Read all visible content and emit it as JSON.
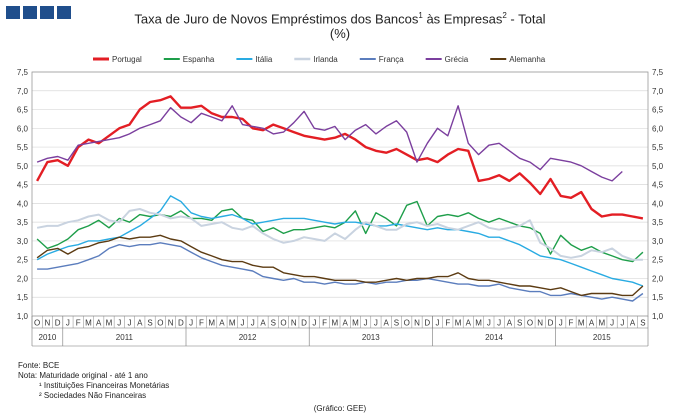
{
  "header": {
    "title_line1_a": "Taxa de Juro de Novos Empréstimos dos Bancos",
    "title_sup1": "1",
    "title_line1_b": " às Empresas",
    "title_sup2": "2",
    "title_line1_c": " - Total",
    "title_line2": "(%)"
  },
  "notes": {
    "source": "Fonte: BCE",
    "note": "Nota: Maturidade original - até 1 ano",
    "fn1": "¹ Instituições Financeiras Monetárias",
    "fn2": "² Sociedades Não Financeiras",
    "credit": "(Gráfico: GEE)"
  },
  "chart_data": {
    "type": "line",
    "title": "Taxa de Juro de Novos Empréstimos dos Bancos¹ às Empresas² - Total",
    "subtitle": "(%)",
    "legend_position": "top",
    "grid": true,
    "ylim": [
      1.0,
      7.5
    ],
    "yticks": [
      "1,0",
      "1,5",
      "2,0",
      "2,5",
      "3,0",
      "3,5",
      "4,0",
      "4,5",
      "5,0",
      "5,5",
      "6,0",
      "6,5",
      "7,0",
      "7,5"
    ],
    "x_months": [
      "O",
      "N",
      "D",
      "J",
      "F",
      "M",
      "A",
      "M",
      "J",
      "J",
      "A",
      "S",
      "O",
      "N",
      "D",
      "J",
      "F",
      "M",
      "A",
      "M",
      "J",
      "J",
      "A",
      "S",
      "O",
      "N",
      "D",
      "J",
      "F",
      "M",
      "A",
      "M",
      "J",
      "J",
      "A",
      "S",
      "O",
      "N",
      "D",
      "J",
      "F",
      "M",
      "A",
      "M",
      "J",
      "J",
      "A",
      "S",
      "O",
      "N",
      "D",
      "J",
      "F",
      "M",
      "A",
      "M",
      "J",
      "J",
      "A",
      "S"
    ],
    "years": [
      {
        "label": "2010",
        "start": 0,
        "end": 3
      },
      {
        "label": "2011",
        "start": 3,
        "end": 15
      },
      {
        "label": "2012",
        "start": 15,
        "end": 27
      },
      {
        "label": "2013",
        "start": 27,
        "end": 39
      },
      {
        "label": "2014",
        "start": 39,
        "end": 51
      },
      {
        "label": "2015",
        "start": 51,
        "end": 60
      }
    ],
    "series": [
      {
        "name": "Portugal",
        "color": "#e31e24",
        "width": 2.4,
        "values": [
          4.6,
          5.1,
          5.15,
          5.0,
          5.5,
          5.7,
          5.6,
          5.8,
          6.0,
          6.1,
          6.5,
          6.7,
          6.75,
          6.85,
          6.55,
          6.55,
          6.6,
          6.4,
          6.3,
          6.3,
          6.25,
          6.0,
          5.95,
          6.1,
          6.0,
          5.9,
          5.8,
          5.75,
          5.7,
          5.75,
          5.85,
          5.7,
          5.5,
          5.4,
          5.35,
          5.45,
          5.3,
          5.15,
          5.2,
          5.1,
          5.3,
          5.45,
          5.4,
          4.6,
          4.65,
          4.75,
          4.6,
          4.8,
          4.55,
          4.25,
          4.65,
          4.2,
          4.15,
          4.3,
          3.85,
          3.65,
          3.7,
          3.7,
          3.65,
          3.6
        ]
      },
      {
        "name": "Espanha",
        "color": "#1e9e4a",
        "width": 1.4,
        "values": [
          3.05,
          2.8,
          2.9,
          3.05,
          3.3,
          3.4,
          3.55,
          3.35,
          3.6,
          3.5,
          3.7,
          3.65,
          3.7,
          3.65,
          3.8,
          3.6,
          3.6,
          3.55,
          3.8,
          3.85,
          3.6,
          3.55,
          3.25,
          3.35,
          3.2,
          3.3,
          3.3,
          3.35,
          3.4,
          3.35,
          3.5,
          3.8,
          3.2,
          3.75,
          3.6,
          3.4,
          3.95,
          4.05,
          3.4,
          3.65,
          3.7,
          3.65,
          3.75,
          3.6,
          3.5,
          3.6,
          3.5,
          3.4,
          3.35,
          3.2,
          2.65,
          3.15,
          2.9,
          2.75,
          2.85,
          2.7,
          2.6,
          2.5,
          2.45,
          2.7
        ]
      },
      {
        "name": "Itália",
        "color": "#29abe2",
        "width": 1.4,
        "values": [
          2.5,
          2.65,
          2.75,
          2.85,
          2.9,
          3.0,
          3.0,
          3.05,
          3.1,
          3.25,
          3.4,
          3.6,
          3.8,
          4.2,
          4.05,
          3.75,
          3.65,
          3.6,
          3.65,
          3.7,
          3.6,
          3.45,
          3.5,
          3.55,
          3.6,
          3.6,
          3.6,
          3.55,
          3.5,
          3.45,
          3.5,
          3.5,
          3.45,
          3.4,
          3.4,
          3.45,
          3.4,
          3.35,
          3.3,
          3.35,
          3.3,
          3.3,
          3.25,
          3.2,
          3.1,
          3.1,
          3.0,
          2.9,
          2.75,
          2.6,
          2.55,
          2.5,
          2.4,
          2.3,
          2.2,
          2.1,
          2.0,
          1.95,
          1.9,
          1.8
        ]
      },
      {
        "name": "Irlanda",
        "color": "#c9d3e0",
        "width": 2.0,
        "values": [
          3.35,
          3.4,
          3.4,
          3.5,
          3.55,
          3.65,
          3.7,
          3.55,
          3.5,
          3.8,
          3.85,
          3.75,
          3.7,
          3.6,
          3.65,
          3.6,
          3.4,
          3.45,
          3.5,
          3.35,
          3.3,
          3.4,
          3.2,
          3.05,
          2.95,
          3.0,
          3.1,
          3.05,
          3.0,
          3.2,
          3.05,
          3.3,
          3.5,
          3.4,
          3.3,
          3.3,
          3.45,
          3.5,
          3.4,
          3.45,
          3.35,
          3.3,
          3.4,
          3.5,
          3.35,
          3.3,
          3.35,
          3.4,
          3.55,
          2.95,
          2.8,
          2.6,
          2.55,
          2.6,
          2.75,
          2.7,
          2.8,
          2.6,
          2.5,
          2.5
        ]
      },
      {
        "name": "França",
        "color": "#5b7dbd",
        "width": 1.4,
        "values": [
          2.25,
          2.25,
          2.3,
          2.35,
          2.4,
          2.5,
          2.6,
          2.8,
          2.9,
          2.85,
          2.9,
          2.9,
          2.95,
          2.9,
          2.85,
          2.7,
          2.55,
          2.45,
          2.35,
          2.3,
          2.25,
          2.2,
          2.05,
          2.0,
          1.95,
          2.0,
          1.9,
          1.9,
          1.85,
          1.9,
          1.85,
          1.85,
          1.9,
          1.85,
          1.9,
          1.9,
          1.95,
          1.95,
          2.0,
          1.95,
          1.9,
          1.85,
          1.85,
          1.8,
          1.8,
          1.85,
          1.75,
          1.7,
          1.65,
          1.65,
          1.55,
          1.55,
          1.6,
          1.55,
          1.5,
          1.45,
          1.5,
          1.45,
          1.4,
          1.6
        ]
      },
      {
        "name": "Grécia",
        "color": "#7b3f9e",
        "width": 1.4,
        "values": [
          5.1,
          5.2,
          5.25,
          5.15,
          5.55,
          5.6,
          5.65,
          5.7,
          5.75,
          5.85,
          6.0,
          6.1,
          6.2,
          6.55,
          6.3,
          6.15,
          6.4,
          6.3,
          6.2,
          6.6,
          6.1,
          6.05,
          6.0,
          5.85,
          5.9,
          6.15,
          6.45,
          6.0,
          5.95,
          6.05,
          5.7,
          5.95,
          6.1,
          5.85,
          6.05,
          6.2,
          5.9,
          5.1,
          5.6,
          6.0,
          5.8,
          6.6,
          5.6,
          5.3,
          5.55,
          5.6,
          5.4,
          5.2,
          5.1,
          4.9,
          5.2,
          5.15,
          5.1,
          5.0,
          4.85,
          4.7,
          4.6,
          4.85,
          null,
          null
        ]
      },
      {
        "name": "Alemanha",
        "color": "#5c3b12",
        "width": 1.4,
        "values": [
          2.55,
          2.75,
          2.8,
          2.65,
          2.8,
          2.85,
          2.95,
          3.0,
          3.1,
          3.05,
          3.1,
          3.1,
          3.15,
          3.05,
          3.0,
          2.85,
          2.7,
          2.6,
          2.5,
          2.45,
          2.45,
          2.35,
          2.3,
          2.3,
          2.15,
          2.1,
          2.05,
          2.05,
          2.0,
          1.95,
          1.95,
          1.95,
          1.9,
          1.9,
          1.95,
          2.0,
          1.95,
          2.0,
          2.0,
          2.05,
          2.05,
          2.15,
          2.0,
          1.95,
          1.95,
          1.9,
          1.85,
          1.8,
          1.8,
          1.75,
          1.7,
          1.75,
          1.65,
          1.55,
          1.6,
          1.6,
          1.6,
          1.55,
          1.55,
          1.8
        ]
      }
    ]
  }
}
